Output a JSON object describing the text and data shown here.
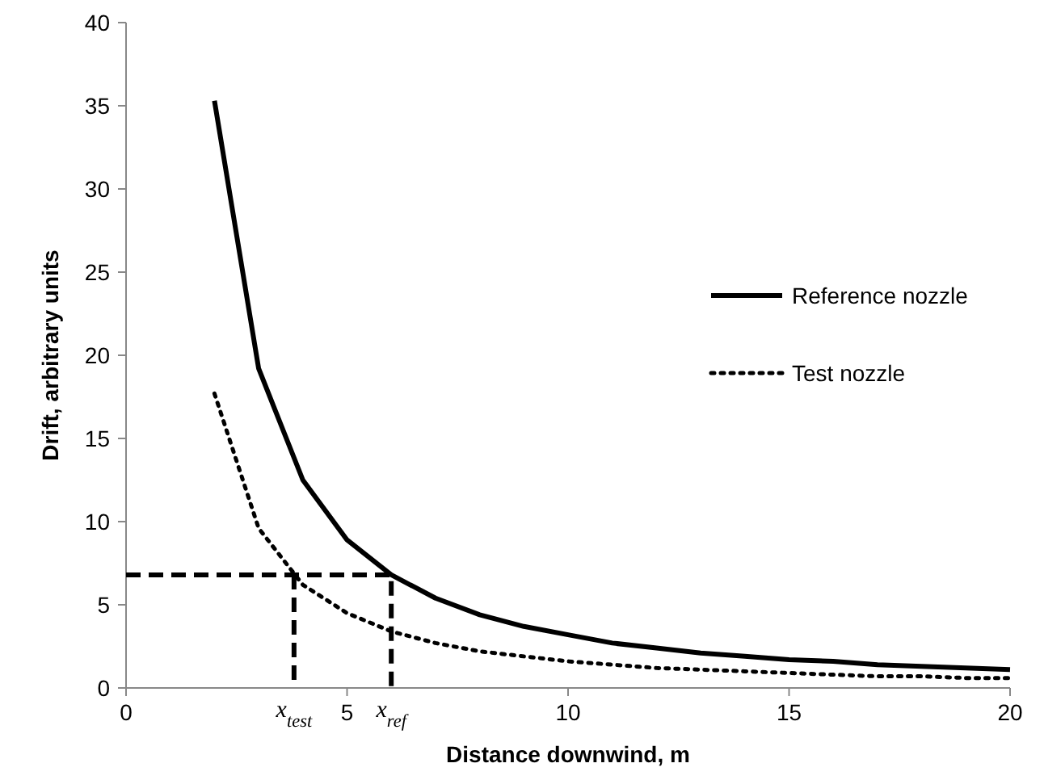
{
  "chart_data": {
    "type": "line",
    "xlabel": "Distance downwind, m",
    "ylabel": "Drift, arbitrary units",
    "xlim": [
      0,
      20
    ],
    "xticks": [
      0,
      5,
      10,
      15,
      20
    ],
    "ylim": [
      0,
      40
    ],
    "yticks": [
      0,
      5,
      10,
      15,
      20,
      25,
      30,
      35,
      40
    ],
    "grid": false,
    "legend": "right",
    "marker": "none",
    "series": [
      {
        "name": "Reference nozzle",
        "color": "#000000",
        "line_style": "solid",
        "x": [
          2,
          3,
          4,
          5,
          6,
          7,
          8,
          9,
          10,
          11,
          12,
          13,
          14,
          15,
          16,
          17,
          18,
          19,
          20
        ],
        "values": [
          35.3,
          19.2,
          12.5,
          8.9,
          6.8,
          5.4,
          4.4,
          3.7,
          3.2,
          2.7,
          2.4,
          2.1,
          1.9,
          1.7,
          1.6,
          1.4,
          1.3,
          1.2,
          1.1
        ]
      },
      {
        "name": "Test nozzle",
        "color": "#000000",
        "line_style": "dotted",
        "x": [
          2,
          3,
          4,
          5,
          6,
          7,
          8,
          9,
          10,
          11,
          12,
          13,
          14,
          15,
          16,
          17,
          18,
          19,
          20
        ],
        "values": [
          17.7,
          9.6,
          6.2,
          4.5,
          3.4,
          2.7,
          2.2,
          1.9,
          1.6,
          1.4,
          1.2,
          1.1,
          1.0,
          0.9,
          0.8,
          0.7,
          0.7,
          0.6,
          0.6
        ]
      },
      {
        "color": "#000000",
        "line_style": "dashed",
        "x": [
          0,
          6,
          6
        ],
        "values": [
          6.8,
          6.8,
          0
        ]
      },
      {
        "color": "#000000",
        "line_style": "dashed",
        "x": [
          3.8,
          3.8
        ],
        "values": [
          6.8,
          0
        ]
      }
    ],
    "annotations": [
      {
        "text": "x$_{test}$",
        "x": 3.8,
        "y": 0
      },
      {
        "text": "x$_{ref}$",
        "x": 6,
        "y": 0
      }
    ]
  }
}
